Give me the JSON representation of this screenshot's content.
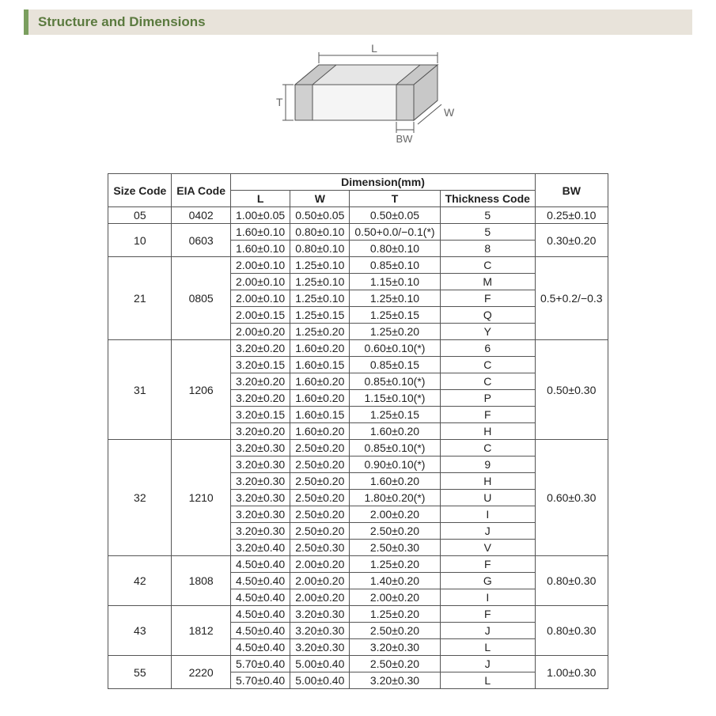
{
  "header": {
    "title": "Structure and Dimensions"
  },
  "diagram": {
    "labels": {
      "L": "L",
      "W": "W",
      "T": "T",
      "BW": "BW"
    },
    "stroke": "#555555",
    "fill_top": "#e6e6e6",
    "fill_front": "#f2f2f2",
    "fill_side": "#d8d8d8",
    "electrode_fill": "#cfcfcf",
    "label_color": "#666666",
    "label_fontsize": 14
  },
  "table": {
    "columns": {
      "size_code": "Size Code",
      "eia_code": "EIA Code",
      "dimension": "Dimension(mm)",
      "L": "L",
      "W": "W",
      "T": "T",
      "thickness_code": "Thickness Code",
      "BW": "BW"
    },
    "groups": [
      {
        "size_code": "05",
        "eia_code": "0402",
        "bw": "0.25±0.10",
        "rows": [
          {
            "L": "1.00±0.05",
            "W": "0.50±0.05",
            "T": "0.50±0.05",
            "tc": "5"
          }
        ]
      },
      {
        "size_code": "10",
        "eia_code": "0603",
        "bw": "0.30±0.20",
        "rows": [
          {
            "L": "1.60±0.10",
            "W": "0.80±0.10",
            "T": "0.50+0.0/−0.1(*)",
            "tc": "5"
          },
          {
            "L": "1.60±0.10",
            "W": "0.80±0.10",
            "T": "0.80±0.10",
            "tc": "8"
          }
        ]
      },
      {
        "size_code": "21",
        "eia_code": "0805",
        "bw": "0.5+0.2/−0.3",
        "rows": [
          {
            "L": "2.00±0.10",
            "W": "1.25±0.10",
            "T": "0.85±0.10",
            "tc": "C"
          },
          {
            "L": "2.00±0.10",
            "W": "1.25±0.10",
            "T": "1.15±0.10",
            "tc": "M"
          },
          {
            "L": "2.00±0.10",
            "W": "1.25±0.10",
            "T": "1.25±0.10",
            "tc": "F"
          },
          {
            "L": "2.00±0.15",
            "W": "1.25±0.15",
            "T": "1.25±0.15",
            "tc": "Q"
          },
          {
            "L": "2.00±0.20",
            "W": "1.25±0.20",
            "T": "1.25±0.20",
            "tc": "Y"
          }
        ]
      },
      {
        "size_code": "31",
        "eia_code": "1206",
        "bw": "0.50±0.30",
        "rows": [
          {
            "L": "3.20±0.20",
            "W": "1.60±0.20",
            "T": "0.60±0.10(*)",
            "tc": "6"
          },
          {
            "L": "3.20±0.15",
            "W": "1.60±0.15",
            "T": "0.85±0.15",
            "tc": "C"
          },
          {
            "L": "3.20±0.20",
            "W": "1.60±0.20",
            "T": "0.85±0.10(*)",
            "tc": "C"
          },
          {
            "L": "3.20±0.20",
            "W": "1.60±0.20",
            "T": "1.15±0.10(*)",
            "tc": "P"
          },
          {
            "L": "3.20±0.15",
            "W": "1.60±0.15",
            "T": "1.25±0.15",
            "tc": "F"
          },
          {
            "L": "3.20±0.20",
            "W": "1.60±0.20",
            "T": "1.60±0.20",
            "tc": "H"
          }
        ]
      },
      {
        "size_code": "32",
        "eia_code": "1210",
        "bw": "0.60±0.30",
        "rows": [
          {
            "L": "3.20±0.30",
            "W": "2.50±0.20",
            "T": "0.85±0.10(*)",
            "tc": "C"
          },
          {
            "L": "3.20±0.30",
            "W": "2.50±0.20",
            "T": "0.90±0.10(*)",
            "tc": "9"
          },
          {
            "L": "3.20±0.30",
            "W": "2.50±0.20",
            "T": "1.60±0.20",
            "tc": "H"
          },
          {
            "L": "3.20±0.30",
            "W": "2.50±0.20",
            "T": "1.80±0.20(*)",
            "tc": "U"
          },
          {
            "L": "3.20±0.30",
            "W": "2.50±0.20",
            "T": "2.00±0.20",
            "tc": "I"
          },
          {
            "L": "3.20±0.30",
            "W": "2.50±0.20",
            "T": "2.50±0.20",
            "tc": "J"
          },
          {
            "L": "3.20±0.40",
            "W": "2.50±0.30",
            "T": "2.50±0.30",
            "tc": "V"
          }
        ]
      },
      {
        "size_code": "42",
        "eia_code": "1808",
        "bw": "0.80±0.30",
        "rows": [
          {
            "L": "4.50±0.40",
            "W": "2.00±0.20",
            "T": "1.25±0.20",
            "tc": "F"
          },
          {
            "L": "4.50±0.40",
            "W": "2.00±0.20",
            "T": "1.40±0.20",
            "tc": "G"
          },
          {
            "L": "4.50±0.40",
            "W": "2.00±0.20",
            "T": "2.00±0.20",
            "tc": "I"
          }
        ]
      },
      {
        "size_code": "43",
        "eia_code": "1812",
        "bw": "0.80±0.30",
        "rows": [
          {
            "L": "4.50±0.40",
            "W": "3.20±0.30",
            "T": "1.25±0.20",
            "tc": "F"
          },
          {
            "L": "4.50±0.40",
            "W": "3.20±0.30",
            "T": "2.50±0.20",
            "tc": "J"
          },
          {
            "L": "4.50±0.40",
            "W": "3.20±0.30",
            "T": "3.20±0.30",
            "tc": "L"
          }
        ]
      },
      {
        "size_code": "55",
        "eia_code": "2220",
        "bw": "1.00±0.30",
        "rows": [
          {
            "L": "5.70±0.40",
            "W": "5.00±0.40",
            "T": "2.50±0.20",
            "tc": "J"
          },
          {
            "L": "5.70±0.40",
            "W": "5.00±0.40",
            "T": "3.20±0.30",
            "tc": "L"
          }
        ]
      }
    ]
  }
}
